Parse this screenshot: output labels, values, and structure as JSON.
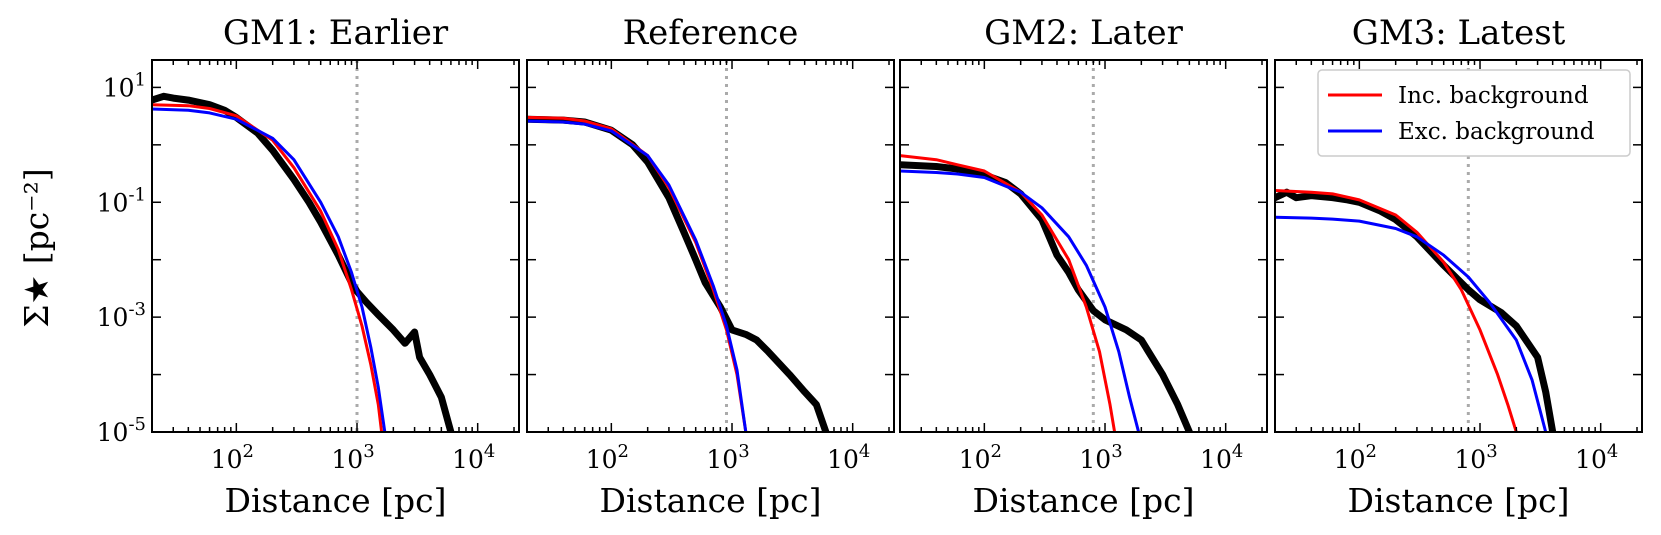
{
  "figure": {
    "ylabel": "Σ★ [pc⁻²]",
    "xlabel": "Distance [pc]",
    "legend": {
      "placement": "top-right of last panel",
      "entries": [
        {
          "label": "Inc. background",
          "color": "#ff0000"
        },
        {
          "label": "Exc. background",
          "color": "#0000ff"
        }
      ]
    },
    "colors": {
      "data": "#000000",
      "inc": "#ff0000",
      "exc": "#0000ff",
      "vline": "#aaaaaa"
    }
  },
  "chart_data": [
    {
      "type": "line",
      "title": "GM1: Earlier",
      "xlabel": "Distance [pc]",
      "ylabel": "Σ★ [pc⁻²]",
      "xscale": "log",
      "yscale": "log",
      "xlim": [
        20,
        22000
      ],
      "ylim": [
        1e-05,
        30
      ],
      "x_ticks": [
        "10^2",
        "10^3",
        "10^4"
      ],
      "y_ticks": [
        "10^1",
        "10^-1",
        "10^-3",
        "10^-5"
      ],
      "vline_x": 1000,
      "series": [
        {
          "role": "data",
          "points": [
            [
              20,
              6
            ],
            [
              25,
              7
            ],
            [
              30,
              6.5
            ],
            [
              40,
              6
            ],
            [
              60,
              5
            ],
            [
              80,
              4
            ],
            [
              100,
              3
            ],
            [
              150,
              1.6
            ],
            [
              200,
              0.8
            ],
            [
              300,
              0.25
            ],
            [
              400,
              0.1
            ],
            [
              500,
              0.045
            ],
            [
              700,
              0.012
            ],
            [
              900,
              0.004
            ],
            [
              1000,
              0.0028
            ],
            [
              1200,
              0.0018
            ],
            [
              1500,
              0.0011
            ],
            [
              2000,
              0.0006
            ],
            [
              2500,
              0.00035
            ],
            [
              3000,
              0.00055
            ],
            [
              3300,
              0.0002
            ],
            [
              4000,
              0.0001
            ],
            [
              5000,
              4e-05
            ],
            [
              6000,
              1e-05
            ]
          ]
        },
        {
          "name": "Inc. background",
          "points": [
            [
              20,
              5
            ],
            [
              40,
              4.8
            ],
            [
              60,
              4.3
            ],
            [
              100,
              3.2
            ],
            [
              200,
              1.2
            ],
            [
              300,
              0.4
            ],
            [
              500,
              0.07
            ],
            [
              700,
              0.015
            ],
            [
              900,
              0.003
            ],
            [
              1100,
              0.0007
            ],
            [
              1300,
              0.00015
            ],
            [
              1500,
              3e-05
            ],
            [
              1600,
              1e-05
            ]
          ]
        },
        {
          "name": "Exc. background",
          "points": [
            [
              20,
              4.2
            ],
            [
              40,
              4
            ],
            [
              60,
              3.6
            ],
            [
              100,
              2.8
            ],
            [
              200,
              1.3
            ],
            [
              300,
              0.55
            ],
            [
              500,
              0.1
            ],
            [
              700,
              0.025
            ],
            [
              900,
              0.006
            ],
            [
              1100,
              0.0015
            ],
            [
              1300,
              0.0003
            ],
            [
              1500,
              6e-05
            ],
            [
              1700,
              1e-05
            ]
          ]
        }
      ]
    },
    {
      "type": "line",
      "title": "Reference",
      "xlabel": "Distance [pc]",
      "xscale": "log",
      "yscale": "log",
      "xlim": [
        20,
        22000
      ],
      "ylim": [
        1e-05,
        30
      ],
      "x_ticks": [
        "10^2",
        "10^3",
        "10^4"
      ],
      "vline_x": 900,
      "series": [
        {
          "role": "data",
          "points": [
            [
              20,
              2.8
            ],
            [
              40,
              2.7
            ],
            [
              60,
              2.5
            ],
            [
              100,
              1.8
            ],
            [
              150,
              1.0
            ],
            [
              200,
              0.5
            ],
            [
              300,
              0.12
            ],
            [
              400,
              0.03
            ],
            [
              500,
              0.01
            ],
            [
              600,
              0.004
            ],
            [
              800,
              0.0015
            ],
            [
              1000,
              0.0006
            ],
            [
              1300,
              0.0005
            ],
            [
              1600,
              0.0004
            ],
            [
              2000,
              0.00025
            ],
            [
              3000,
              0.0001
            ],
            [
              4000,
              5e-05
            ],
            [
              5000,
              3e-05
            ],
            [
              6000,
              1e-05
            ]
          ]
        },
        {
          "name": "Inc. background",
          "points": [
            [
              20,
              3.0
            ],
            [
              40,
              2.9
            ],
            [
              60,
              2.6
            ],
            [
              100,
              1.9
            ],
            [
              200,
              0.65
            ],
            [
              300,
              0.18
            ],
            [
              500,
              0.02
            ],
            [
              700,
              0.003
            ],
            [
              900,
              0.0006
            ],
            [
              1100,
              0.0001
            ],
            [
              1300,
              1e-05
            ]
          ]
        },
        {
          "name": "Exc. background",
          "points": [
            [
              20,
              2.6
            ],
            [
              40,
              2.5
            ],
            [
              60,
              2.3
            ],
            [
              100,
              1.75
            ],
            [
              200,
              0.65
            ],
            [
              300,
              0.2
            ],
            [
              500,
              0.022
            ],
            [
              700,
              0.0035
            ],
            [
              900,
              0.0007
            ],
            [
              1100,
              0.00012
            ],
            [
              1300,
              1e-05
            ]
          ]
        }
      ]
    },
    {
      "type": "line",
      "title": "GM2: Later",
      "xlabel": "Distance [pc]",
      "xscale": "log",
      "yscale": "log",
      "xlim": [
        20,
        22000
      ],
      "ylim": [
        1e-05,
        30
      ],
      "x_ticks": [
        "10^2",
        "10^3",
        "10^4"
      ],
      "vline_x": 800,
      "series": [
        {
          "role": "data",
          "points": [
            [
              20,
              0.45
            ],
            [
              40,
              0.42
            ],
            [
              60,
              0.38
            ],
            [
              100,
              0.3
            ],
            [
              150,
              0.22
            ],
            [
              200,
              0.14
            ],
            [
              300,
              0.05
            ],
            [
              400,
              0.012
            ],
            [
              500,
              0.006
            ],
            [
              600,
              0.003
            ],
            [
              800,
              0.0013
            ],
            [
              1000,
              0.0009
            ],
            [
              1500,
              0.0006
            ],
            [
              2000,
              0.0004
            ],
            [
              3000,
              0.0001
            ],
            [
              4000,
              3e-05
            ],
            [
              5000,
              1e-05
            ]
          ]
        },
        {
          "name": "Inc. background",
          "points": [
            [
              20,
              0.65
            ],
            [
              40,
              0.55
            ],
            [
              60,
              0.45
            ],
            [
              100,
              0.35
            ],
            [
              200,
              0.15
            ],
            [
              300,
              0.06
            ],
            [
              500,
              0.01
            ],
            [
              700,
              0.0015
            ],
            [
              900,
              0.00025
            ],
            [
              1100,
              3e-05
            ],
            [
              1200,
              1e-05
            ]
          ]
        },
        {
          "name": "Exc. background",
          "points": [
            [
              20,
              0.35
            ],
            [
              40,
              0.33
            ],
            [
              60,
              0.31
            ],
            [
              100,
              0.27
            ],
            [
              200,
              0.15
            ],
            [
              300,
              0.08
            ],
            [
              500,
              0.025
            ],
            [
              700,
              0.008
            ],
            [
              1000,
              0.0015
            ],
            [
              1300,
              0.00025
            ],
            [
              1600,
              4e-05
            ],
            [
              1900,
              1e-05
            ]
          ]
        }
      ]
    },
    {
      "type": "line",
      "title": "GM3: Latest",
      "xlabel": "Distance [pc]",
      "xscale": "log",
      "yscale": "log",
      "xlim": [
        20,
        22000
      ],
      "ylim": [
        1e-05,
        30
      ],
      "x_ticks": [
        "10^2",
        "10^3",
        "10^4"
      ],
      "vline_x": 800,
      "series": [
        {
          "role": "data",
          "points": [
            [
              20,
              0.12
            ],
            [
              25,
              0.15
            ],
            [
              30,
              0.12
            ],
            [
              40,
              0.13
            ],
            [
              60,
              0.12
            ],
            [
              80,
              0.11
            ],
            [
              100,
              0.1
            ],
            [
              150,
              0.07
            ],
            [
              200,
              0.05
            ],
            [
              300,
              0.025
            ],
            [
              500,
              0.008
            ],
            [
              800,
              0.003
            ],
            [
              1000,
              0.002
            ],
            [
              1500,
              0.0012
            ],
            [
              2000,
              0.0007
            ],
            [
              3000,
              0.0002
            ],
            [
              3500,
              5e-05
            ],
            [
              4000,
              1e-05
            ]
          ]
        },
        {
          "name": "Inc. background",
          "points": [
            [
              20,
              0.16
            ],
            [
              40,
              0.15
            ],
            [
              60,
              0.14
            ],
            [
              100,
              0.11
            ],
            [
              200,
              0.06
            ],
            [
              300,
              0.03
            ],
            [
              500,
              0.009
            ],
            [
              700,
              0.003
            ],
            [
              1000,
              0.0006
            ],
            [
              1400,
              0.0001
            ],
            [
              1700,
              3e-05
            ],
            [
              2000,
              1e-05
            ]
          ]
        },
        {
          "name": "Exc. background",
          "points": [
            [
              20,
              0.055
            ],
            [
              40,
              0.053
            ],
            [
              60,
              0.051
            ],
            [
              100,
              0.047
            ],
            [
              200,
              0.035
            ],
            [
              300,
              0.025
            ],
            [
              500,
              0.012
            ],
            [
              800,
              0.005
            ],
            [
              1200,
              0.0018
            ],
            [
              2000,
              0.0004
            ],
            [
              2700,
              8e-05
            ],
            [
              3500,
              1e-05
            ]
          ]
        }
      ]
    }
  ]
}
